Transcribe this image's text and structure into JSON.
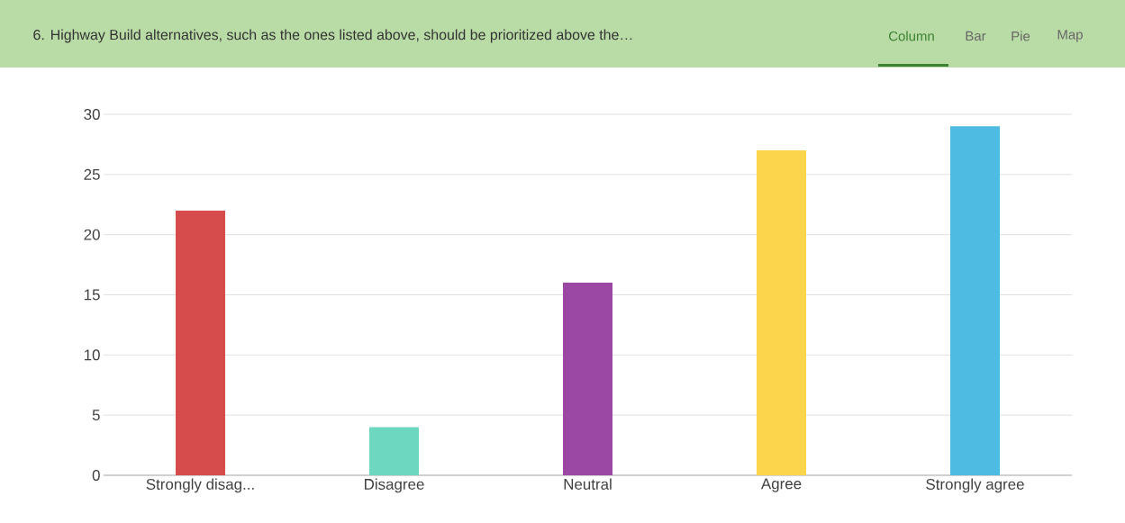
{
  "chart_data": {
    "type": "bar",
    "title": "6. Highway Build alternatives, such as the ones listed above, should be prioritized above the…",
    "annotations": [
      "Column",
      "Bar",
      "Pie",
      "Map"
    ],
    "categories": [
      "Strongly disag...",
      "Disagree",
      "Neutral",
      "Agree",
      "Strongly agree"
    ],
    "values": [
      22,
      4,
      16,
      27,
      29
    ],
    "colors": [
      "#d64b4b",
      "#6dd8bf",
      "#9b47a4",
      "#fdd54d",
      "#4dbbe2"
    ],
    "ylim": [
      0,
      30
    ],
    "yticks": [
      0,
      5,
      10,
      15,
      20,
      25,
      30
    ],
    "grid": "y"
  }
}
